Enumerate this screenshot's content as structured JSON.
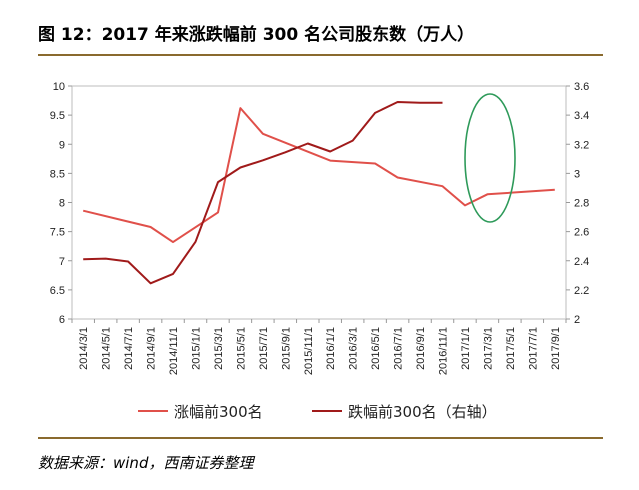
{
  "header": {
    "title": "图 12：2017 年来涨跌幅前 300 名公司股东数（万人）"
  },
  "footer": {
    "source": "数据来源：wind，西南证券整理"
  },
  "colors": {
    "series1": "#e0504a",
    "series2": "#a01a1a",
    "ellipse": "#2e9a5a",
    "rule": "#8a6a2e"
  },
  "chart_data": {
    "type": "line",
    "title": "图 12：2017 年来涨跌幅前 300 名公司股东数（万人）",
    "x": [
      "2014/3/1",
      "2014/5/1",
      "2014/7/1",
      "2014/9/1",
      "2014/11/1",
      "2015/1/1",
      "2015/3/1",
      "2015/5/1",
      "2015/7/1",
      "2015/9/1",
      "2015/11/1",
      "2016/1/1",
      "2016/3/1",
      "2016/5/1",
      "2016/7/1",
      "2016/9/1",
      "2016/11/1",
      "2017/1/1",
      "2017/3/1",
      "2017/5/1",
      "2017/7/1",
      "2017/9/1"
    ],
    "x_ticks": [
      "2014/3/1",
      "2014/5/1",
      "2014/7/1",
      "2014/9/1",
      "2014/11/1",
      "2015/1/1",
      "2015/3/1",
      "2015/5/1",
      "2015/7/1",
      "2015/9/1",
      "2015/11/1",
      "2016/1/1",
      "2016/3/1",
      "2016/5/1",
      "2016/7/1",
      "2016/9/1",
      "2016/11/1",
      "2017/1/1",
      "2017/3/1",
      "2017/5/1",
      "2017/7/1",
      "2017/9/1"
    ],
    "y_left": {
      "lim": [
        6,
        10
      ],
      "ticks": [
        "6",
        "6.5",
        "7",
        "7.5",
        "8",
        "8.5",
        "9",
        "9.5",
        "10"
      ]
    },
    "y_right": {
      "lim": [
        2,
        3.6
      ],
      "ticks": [
        "2",
        "2.2",
        "2.4",
        "2.6",
        "2.8",
        "3",
        "3.2",
        "3.4",
        "3.6"
      ]
    },
    "series": [
      {
        "name": "涨幅前300名",
        "axis": "left",
        "points": [
          [
            "2014/3/1",
            7.86
          ],
          [
            "2014/9/1",
            7.58
          ],
          [
            "2014/11/1",
            7.32
          ],
          [
            "2015/3/1",
            7.83
          ],
          [
            "2015/5/1",
            9.62
          ],
          [
            "2015/7/1",
            9.18
          ],
          [
            "2016/1/1",
            8.72
          ],
          [
            "2016/5/1",
            8.67
          ],
          [
            "2016/7/1",
            8.43
          ],
          [
            "2016/11/1",
            8.28
          ],
          [
            "2017/1/1",
            7.95
          ],
          [
            "2017/3/1",
            8.14
          ],
          [
            "2017/9/1",
            8.22
          ]
        ]
      },
      {
        "name": "跌幅前300名（右轴）",
        "axis": "right",
        "points": [
          [
            "2014/3/1",
            2.41
          ],
          [
            "2014/5/1",
            2.415
          ],
          [
            "2014/7/1",
            2.395
          ],
          [
            "2014/9/1",
            2.245
          ],
          [
            "2014/11/1",
            2.31
          ],
          [
            "2015/1/1",
            2.53
          ],
          [
            "2015/3/1",
            2.94
          ],
          [
            "2015/5/1",
            3.04
          ],
          [
            "2015/7/1",
            3.09
          ],
          [
            "2015/9/1",
            3.145
          ],
          [
            "2015/11/1",
            3.205
          ],
          [
            "2016/1/1",
            3.15
          ],
          [
            "2016/3/1",
            3.225
          ],
          [
            "2016/5/1",
            3.415
          ],
          [
            "2016/7/1",
            3.49
          ],
          [
            "2016/9/1",
            3.485
          ],
          [
            "2016/11/1",
            3.485
          ]
        ]
      }
    ],
    "legend": {
      "placement": "bottom"
    },
    "grid": false
  }
}
